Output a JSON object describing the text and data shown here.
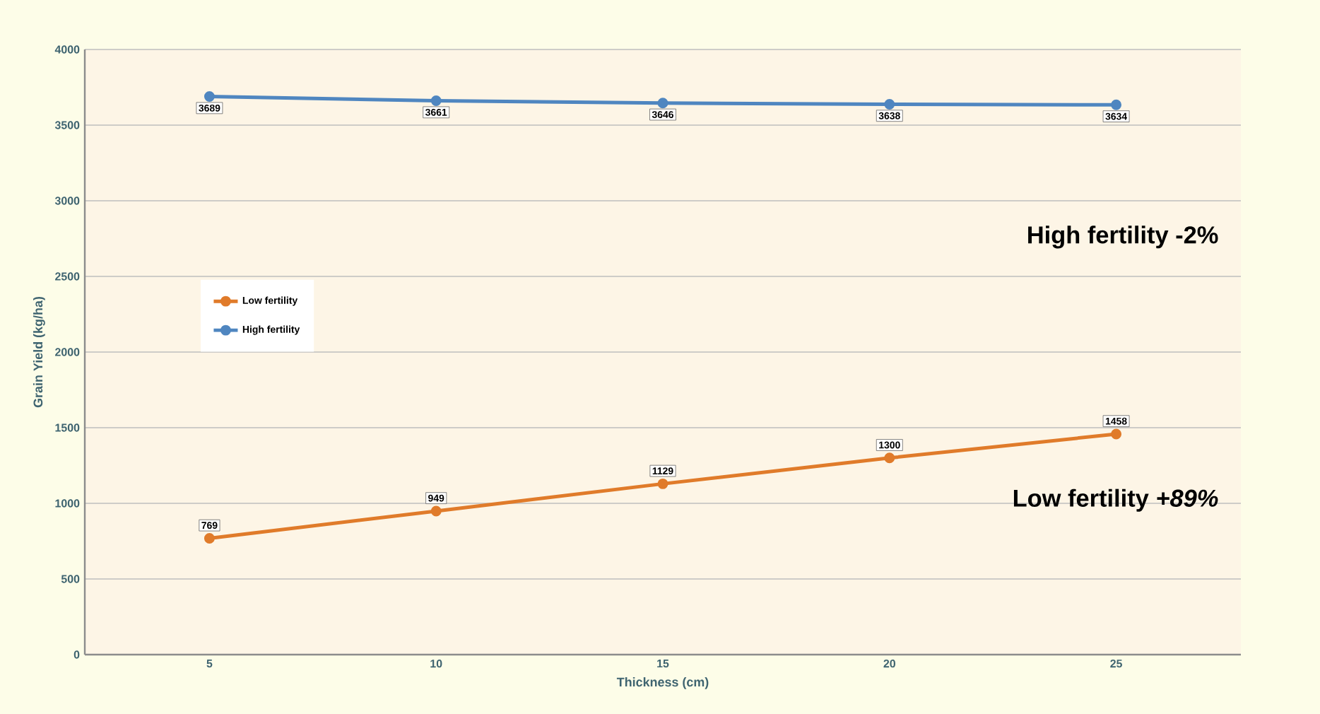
{
  "chart_data": {
    "type": "line",
    "xlabel": "Thickness (cm)",
    "ylabel": "Grain Yield (kg/ha)",
    "categories": [
      "5",
      "10",
      "15",
      "20",
      "25"
    ],
    "series": [
      {
        "name": "Low fertility",
        "color": "#e07b2a",
        "values": [
          769,
          949,
          1129,
          1300,
          1458
        ]
      },
      {
        "name": "High fertility",
        "color": "#4f86c0",
        "values": [
          3689,
          3661,
          3646,
          3638,
          3634
        ]
      }
    ],
    "ylim": [
      0,
      4000
    ],
    "yticks": [
      0,
      500,
      1000,
      1500,
      2000,
      2500,
      3000,
      3500,
      4000
    ],
    "grid": "y",
    "legend": "left",
    "marker": "circle",
    "data_labels": true,
    "annotations": [
      "High fertility -2%",
      "Low fertility *+89%*"
    ]
  }
}
